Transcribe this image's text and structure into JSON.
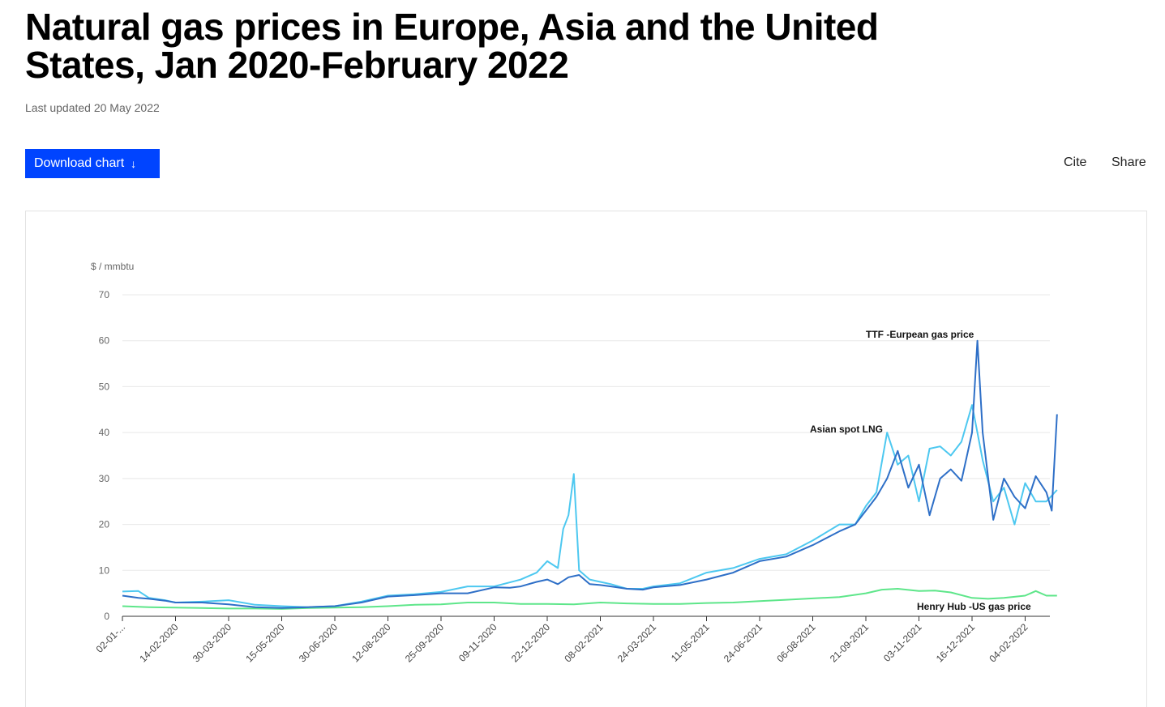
{
  "page": {
    "title": "Natural gas prices in Europe, Asia and the United States, Jan 2020-February 2022",
    "last_updated": "Last updated 20 May 2022",
    "download_label": "Download chart",
    "download_icon": "arrow-down-icon",
    "cite_label": "Cite",
    "share_label": "Share"
  },
  "colors": {
    "accent": "#0044ff",
    "ttf": "#2e6fc7",
    "asian": "#4dc8f0",
    "henry": "#5ee68a",
    "grid": "#e8e8e8"
  },
  "chart_data": {
    "type": "line",
    "title": "",
    "ylabel": "$ / mmbtu",
    "xlabel": "",
    "ylim": [
      0,
      70
    ],
    "yticks": [
      0,
      10,
      20,
      30,
      40,
      50,
      60,
      70
    ],
    "x_tick_labels": [
      "02-01-...",
      "14-02-2020",
      "30-03-2020",
      "15-05-2020",
      "30-06-2020",
      "12-08-2020",
      "25-09-2020",
      "09-11-2020",
      "22-12-2020",
      "08-02-2021",
      "24-03-2021",
      "11-05-2021",
      "24-06-2021",
      "06-08-2021",
      "21-09-2021",
      "03-11-2021",
      "16-12-2021",
      "04-02-2022"
    ],
    "x_index_range": [
      0,
      17.6
    ],
    "series": [
      {
        "name": "TTF -Eurpean gas price",
        "x": [
          0,
          0.3,
          0.5,
          0.8,
          1.0,
          1.5,
          2.0,
          2.5,
          3.0,
          3.5,
          4.0,
          4.5,
          5.0,
          5.5,
          6.0,
          6.5,
          7.0,
          7.3,
          7.5,
          7.8,
          8.0,
          8.2,
          8.4,
          8.6,
          8.8,
          9.0,
          9.2,
          9.5,
          9.8,
          10.0,
          10.5,
          11.0,
          11.5,
          12.0,
          12.5,
          13.0,
          13.5,
          13.8,
          14.0,
          14.2,
          14.4,
          14.6,
          14.8,
          15.0,
          15.2,
          15.4,
          15.6,
          15.8,
          16.0,
          16.1,
          16.2,
          16.4,
          16.6,
          16.8,
          17.0,
          17.2,
          17.4,
          17.5,
          17.6
        ],
        "values": [
          4.5,
          4.0,
          3.8,
          3.4,
          3.0,
          3.0,
          2.6,
          2.0,
          1.8,
          2.0,
          2.2,
          3.0,
          4.3,
          4.6,
          5.0,
          5.0,
          6.3,
          6.2,
          6.5,
          7.5,
          8.0,
          7.0,
          8.5,
          9.0,
          7.0,
          6.8,
          6.5,
          6.0,
          5.8,
          6.3,
          6.8,
          8.0,
          9.5,
          12.0,
          13.0,
          15.5,
          18.5,
          20.0,
          23.0,
          26.0,
          30.0,
          36.0,
          28.0,
          33.0,
          22.0,
          30.0,
          32.0,
          29.5,
          40.0,
          60.0,
          40.0,
          21.0,
          30.0,
          26.0,
          23.5,
          30.5,
          27.0,
          23.0,
          44.0
        ]
      },
      {
        "name": "Asian spot LNG",
        "x": [
          0,
          0.3,
          0.5,
          0.8,
          1.0,
          1.5,
          2.0,
          2.5,
          3.0,
          3.5,
          4.0,
          4.5,
          5.0,
          5.5,
          6.0,
          6.5,
          7.0,
          7.5,
          7.8,
          8.0,
          8.2,
          8.3,
          8.4,
          8.5,
          8.6,
          8.8,
          9.0,
          9.2,
          9.5,
          9.8,
          10.0,
          10.5,
          11.0,
          11.5,
          12.0,
          12.5,
          13.0,
          13.5,
          13.8,
          14.0,
          14.2,
          14.4,
          14.6,
          14.8,
          15.0,
          15.2,
          15.4,
          15.6,
          15.8,
          16.0,
          16.1,
          16.2,
          16.4,
          16.6,
          16.8,
          17.0,
          17.2,
          17.4,
          17.6
        ],
        "values": [
          5.4,
          5.5,
          4.0,
          3.5,
          3.0,
          3.2,
          3.5,
          2.5,
          2.2,
          2.0,
          2.2,
          3.2,
          4.5,
          4.8,
          5.3,
          6.5,
          6.5,
          8.0,
          9.5,
          12.0,
          10.5,
          19.0,
          22.0,
          31.0,
          10.0,
          8.0,
          7.5,
          7.0,
          6.0,
          6.0,
          6.5,
          7.2,
          9.5,
          10.5,
          12.5,
          13.5,
          16.5,
          20.0,
          20.0,
          24.0,
          27.0,
          40.0,
          33.0,
          35.0,
          25.0,
          36.5,
          37.0,
          35.0,
          38.0,
          46.0,
          40.0,
          34.0,
          25.0,
          28.0,
          20.0,
          29.0,
          25.0,
          25.0,
          27.5
        ]
      },
      {
        "name": "Henry Hub -US gas price",
        "x": [
          0,
          0.5,
          1.0,
          1.5,
          2.0,
          2.5,
          3.0,
          3.5,
          4.0,
          4.5,
          5.0,
          5.5,
          6.0,
          6.5,
          7.0,
          7.5,
          8.0,
          8.5,
          9.0,
          9.5,
          10.0,
          10.5,
          11.0,
          11.5,
          12.0,
          12.5,
          13.0,
          13.5,
          14.0,
          14.3,
          14.6,
          15.0,
          15.3,
          15.6,
          16.0,
          16.3,
          16.6,
          17.0,
          17.2,
          17.4,
          17.6
        ],
        "values": [
          2.2,
          2.0,
          1.9,
          1.8,
          1.7,
          1.7,
          1.6,
          1.8,
          1.9,
          2.0,
          2.2,
          2.5,
          2.6,
          3.0,
          3.0,
          2.7,
          2.7,
          2.6,
          3.0,
          2.8,
          2.7,
          2.7,
          2.9,
          3.0,
          3.3,
          3.6,
          3.9,
          4.2,
          5.0,
          5.8,
          6.0,
          5.5,
          5.6,
          5.2,
          4.0,
          3.8,
          4.0,
          4.5,
          5.5,
          4.5,
          4.5
        ]
      }
    ],
    "annotations": [
      {
        "text": "TTF -Eurpean gas price",
        "series": "TTF -Eurpean gas price"
      },
      {
        "text": "Asian spot LNG",
        "series": "Asian spot LNG"
      },
      {
        "text": "Henry Hub -US gas price",
        "series": "Henry Hub -US gas price"
      }
    ],
    "grid": true,
    "legend": "inline labels"
  }
}
